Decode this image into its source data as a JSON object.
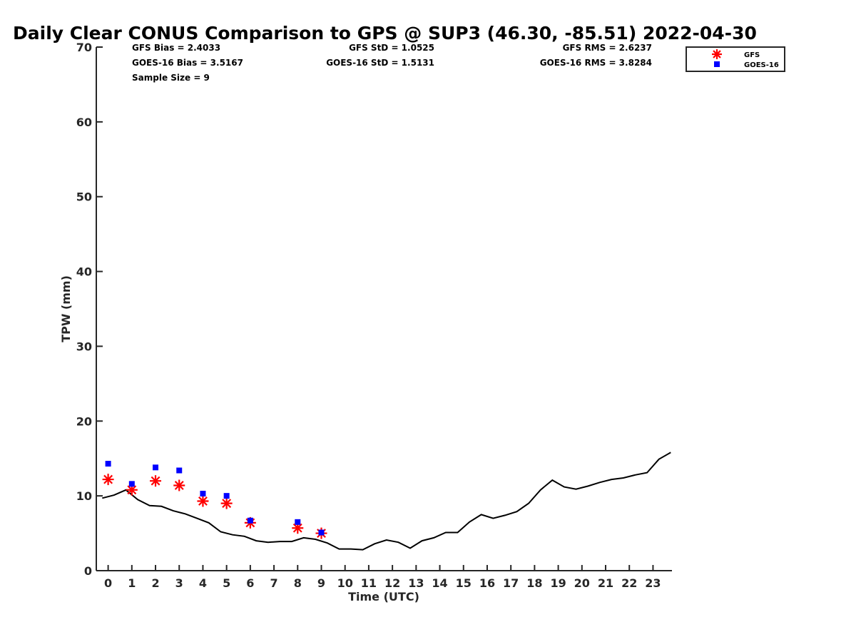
{
  "chart_data": {
    "type": "line",
    "title": "Daily Clear CONUS Comparison to GPS @ SUP3 (46.30, -85.51) 2022-04-30",
    "xlabel": "Time (UTC)",
    "ylabel": "TPW (mm)",
    "xlim": [
      -0.5,
      23.8
    ],
    "ylim": [
      0,
      70
    ],
    "xticks": [
      0,
      1,
      2,
      3,
      4,
      5,
      6,
      7,
      8,
      9,
      10,
      11,
      12,
      13,
      14,
      15,
      16,
      17,
      18,
      19,
      20,
      21,
      22,
      23
    ],
    "yticks": [
      0,
      10,
      20,
      30,
      40,
      50,
      60,
      70
    ],
    "grid": false,
    "legend_position": "top-right",
    "stats": {
      "gfs_bias": "GFS Bias = 2.4033",
      "goes_bias": "GOES-16 Bias = 3.5167",
      "sample_size": "Sample Size = 9",
      "gfs_std": "GFS StD = 1.0525",
      "goes_std": "GOES-16 StD = 1.5131",
      "gfs_rms": "GFS RMS = 2.6237",
      "goes_rms": "GOES-16 RMS = 3.8284"
    },
    "series": [
      {
        "kind": "line",
        "color": "#000000",
        "x": [
          -0.25,
          0.25,
          0.75,
          1.25,
          1.75,
          2.25,
          2.75,
          3.25,
          3.75,
          4.25,
          4.75,
          5.25,
          5.75,
          6.25,
          6.75,
          7.25,
          7.75,
          8.25,
          8.75,
          9.25,
          9.75,
          10.25,
          10.75,
          11.25,
          11.75,
          12.25,
          12.75,
          13.25,
          13.75,
          14.25,
          14.75,
          15.25,
          15.75,
          16.25,
          16.75,
          17.25,
          17.75,
          18.25,
          18.75,
          19.25,
          19.75,
          20.25,
          20.75,
          21.25,
          21.75,
          22.25,
          22.75,
          23.25,
          23.75
        ],
        "values": [
          9.7,
          10.1,
          10.8,
          9.5,
          8.7,
          8.6,
          8.0,
          7.6,
          7.0,
          6.4,
          5.2,
          4.8,
          4.6,
          4.0,
          3.8,
          3.9,
          3.9,
          4.4,
          4.2,
          3.7,
          2.9,
          2.9,
          2.8,
          3.6,
          4.1,
          3.8,
          3.0,
          4.0,
          4.4,
          5.1,
          5.1,
          6.5,
          7.5,
          7.0,
          7.4,
          7.9,
          9.0,
          10.8,
          12.1,
          11.2,
          10.9,
          11.3,
          11.8,
          12.2,
          12.4,
          12.8,
          13.1,
          14.9,
          15.8
        ]
      },
      {
        "name": "GFS",
        "kind": "scatter",
        "marker": "asterisk",
        "color": "#ff0000",
        "x": [
          0,
          1,
          2,
          3,
          4,
          5,
          6,
          8,
          9
        ],
        "values": [
          12.2,
          10.8,
          12.0,
          11.4,
          9.3,
          9.0,
          6.4,
          5.7,
          5.0
        ]
      },
      {
        "name": "GOES-16",
        "kind": "scatter",
        "marker": "square",
        "color": "#0000ff",
        "x": [
          0,
          1,
          2,
          3,
          4,
          5,
          6,
          8,
          9
        ],
        "values": [
          14.3,
          11.6,
          13.8,
          13.4,
          10.3,
          10.0,
          6.7,
          6.5,
          5.1
        ]
      }
    ]
  }
}
